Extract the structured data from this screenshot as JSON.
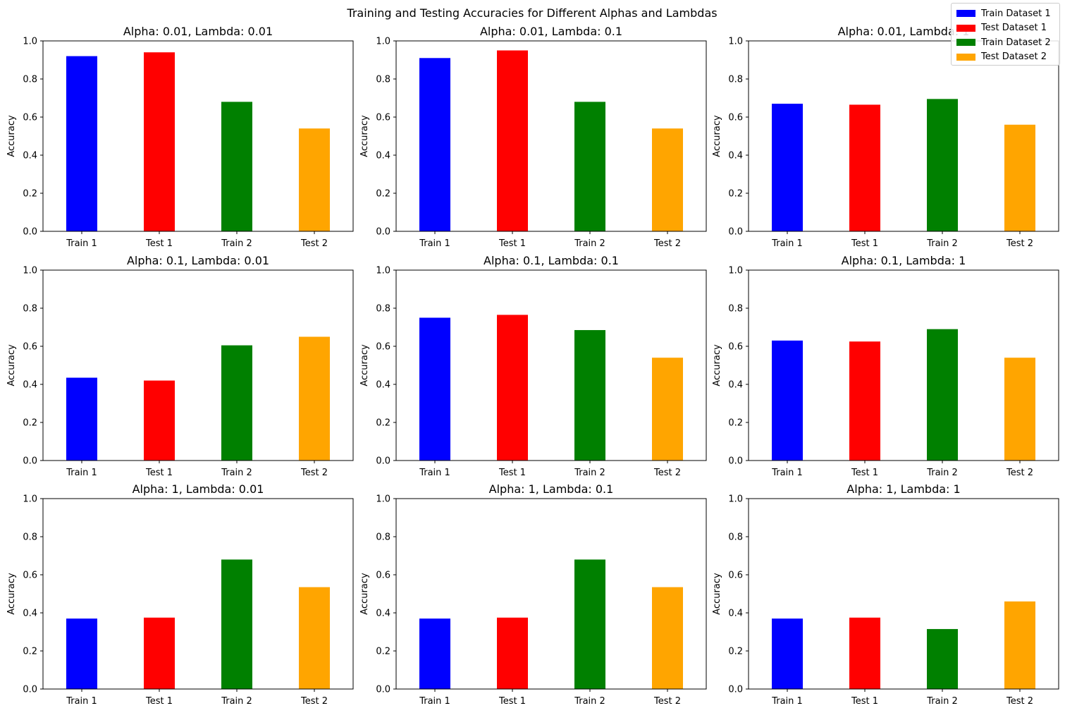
{
  "figure": {
    "suptitle": "Training and Testing Accuracies for Different Alphas and Lambdas",
    "legend": [
      {
        "label": "Train Dataset 1",
        "color": "#0000ff"
      },
      {
        "label": "Test Dataset 1",
        "color": "#ff0000"
      },
      {
        "label": "Train Dataset 2",
        "color": "#008000"
      },
      {
        "label": "Test Dataset 2",
        "color": "#ffa500"
      }
    ]
  },
  "chart_data": [
    {
      "type": "bar",
      "title": "Alpha: 0.01, Lambda: 0.01",
      "categories": [
        "Train 1",
        "Test 1",
        "Train 2",
        "Test 2"
      ],
      "values": [
        0.92,
        0.94,
        0.68,
        0.54
      ],
      "colors": [
        "#0000ff",
        "#ff0000",
        "#008000",
        "#ffa500"
      ],
      "ylabel": "Accuracy",
      "ylim": [
        0,
        1.0
      ],
      "yticks": [
        "0.0",
        "0.2",
        "0.4",
        "0.6",
        "0.8",
        "1.0"
      ]
    },
    {
      "type": "bar",
      "title": "Alpha: 0.01, Lambda: 0.1",
      "categories": [
        "Train 1",
        "Test 1",
        "Train 2",
        "Test 2"
      ],
      "values": [
        0.91,
        0.95,
        0.68,
        0.54
      ],
      "colors": [
        "#0000ff",
        "#ff0000",
        "#008000",
        "#ffa500"
      ],
      "ylabel": "Accuracy",
      "ylim": [
        0,
        1.0
      ],
      "yticks": [
        "0.0",
        "0.2",
        "0.4",
        "0.6",
        "0.8",
        "1.0"
      ]
    },
    {
      "type": "bar",
      "title": "Alpha: 0.01, Lambda: 1",
      "categories": [
        "Train 1",
        "Test 1",
        "Train 2",
        "Test 2"
      ],
      "values": [
        0.67,
        0.665,
        0.695,
        0.56
      ],
      "colors": [
        "#0000ff",
        "#ff0000",
        "#008000",
        "#ffa500"
      ],
      "ylabel": "Accuracy",
      "ylim": [
        0,
        1.0
      ],
      "yticks": [
        "0.0",
        "0.2",
        "0.4",
        "0.6",
        "0.8",
        "1.0"
      ]
    },
    {
      "type": "bar",
      "title": "Alpha: 0.1, Lambda: 0.01",
      "categories": [
        "Train 1",
        "Test 1",
        "Train 2",
        "Test 2"
      ],
      "values": [
        0.435,
        0.42,
        0.605,
        0.65
      ],
      "colors": [
        "#0000ff",
        "#ff0000",
        "#008000",
        "#ffa500"
      ],
      "ylabel": "Accuracy",
      "ylim": [
        0,
        1.0
      ],
      "yticks": [
        "0.0",
        "0.2",
        "0.4",
        "0.6",
        "0.8",
        "1.0"
      ]
    },
    {
      "type": "bar",
      "title": "Alpha: 0.1, Lambda: 0.1",
      "categories": [
        "Train 1",
        "Test 1",
        "Train 2",
        "Test 2"
      ],
      "values": [
        0.75,
        0.765,
        0.685,
        0.54
      ],
      "colors": [
        "#0000ff",
        "#ff0000",
        "#008000",
        "#ffa500"
      ],
      "ylabel": "Accuracy",
      "ylim": [
        0,
        1.0
      ],
      "yticks": [
        "0.0",
        "0.2",
        "0.4",
        "0.6",
        "0.8",
        "1.0"
      ]
    },
    {
      "type": "bar",
      "title": "Alpha: 0.1, Lambda: 1",
      "categories": [
        "Train 1",
        "Test 1",
        "Train 2",
        "Test 2"
      ],
      "values": [
        0.63,
        0.625,
        0.69,
        0.54
      ],
      "colors": [
        "#0000ff",
        "#ff0000",
        "#008000",
        "#ffa500"
      ],
      "ylabel": "Accuracy",
      "ylim": [
        0,
        1.0
      ],
      "yticks": [
        "0.0",
        "0.2",
        "0.4",
        "0.6",
        "0.8",
        "1.0"
      ]
    },
    {
      "type": "bar",
      "title": "Alpha: 1, Lambda: 0.01",
      "categories": [
        "Train 1",
        "Test 1",
        "Train 2",
        "Test 2"
      ],
      "values": [
        0.37,
        0.375,
        0.68,
        0.535
      ],
      "colors": [
        "#0000ff",
        "#ff0000",
        "#008000",
        "#ffa500"
      ],
      "ylabel": "Accuracy",
      "ylim": [
        0,
        1.0
      ],
      "yticks": [
        "0.0",
        "0.2",
        "0.4",
        "0.6",
        "0.8",
        "1.0"
      ]
    },
    {
      "type": "bar",
      "title": "Alpha: 1, Lambda: 0.1",
      "categories": [
        "Train 1",
        "Test 1",
        "Train 2",
        "Test 2"
      ],
      "values": [
        0.37,
        0.375,
        0.68,
        0.535
      ],
      "colors": [
        "#0000ff",
        "#ff0000",
        "#008000",
        "#ffa500"
      ],
      "ylabel": "Accuracy",
      "ylim": [
        0,
        1.0
      ],
      "yticks": [
        "0.0",
        "0.2",
        "0.4",
        "0.6",
        "0.8",
        "1.0"
      ]
    },
    {
      "type": "bar",
      "title": "Alpha: 1, Lambda: 1",
      "categories": [
        "Train 1",
        "Test 1",
        "Train 2",
        "Test 2"
      ],
      "values": [
        0.37,
        0.375,
        0.315,
        0.46
      ],
      "colors": [
        "#0000ff",
        "#ff0000",
        "#008000",
        "#ffa500"
      ],
      "ylabel": "Accuracy",
      "ylim": [
        0,
        1.0
      ],
      "yticks": [
        "0.0",
        "0.2",
        "0.4",
        "0.6",
        "0.8",
        "1.0"
      ]
    }
  ]
}
